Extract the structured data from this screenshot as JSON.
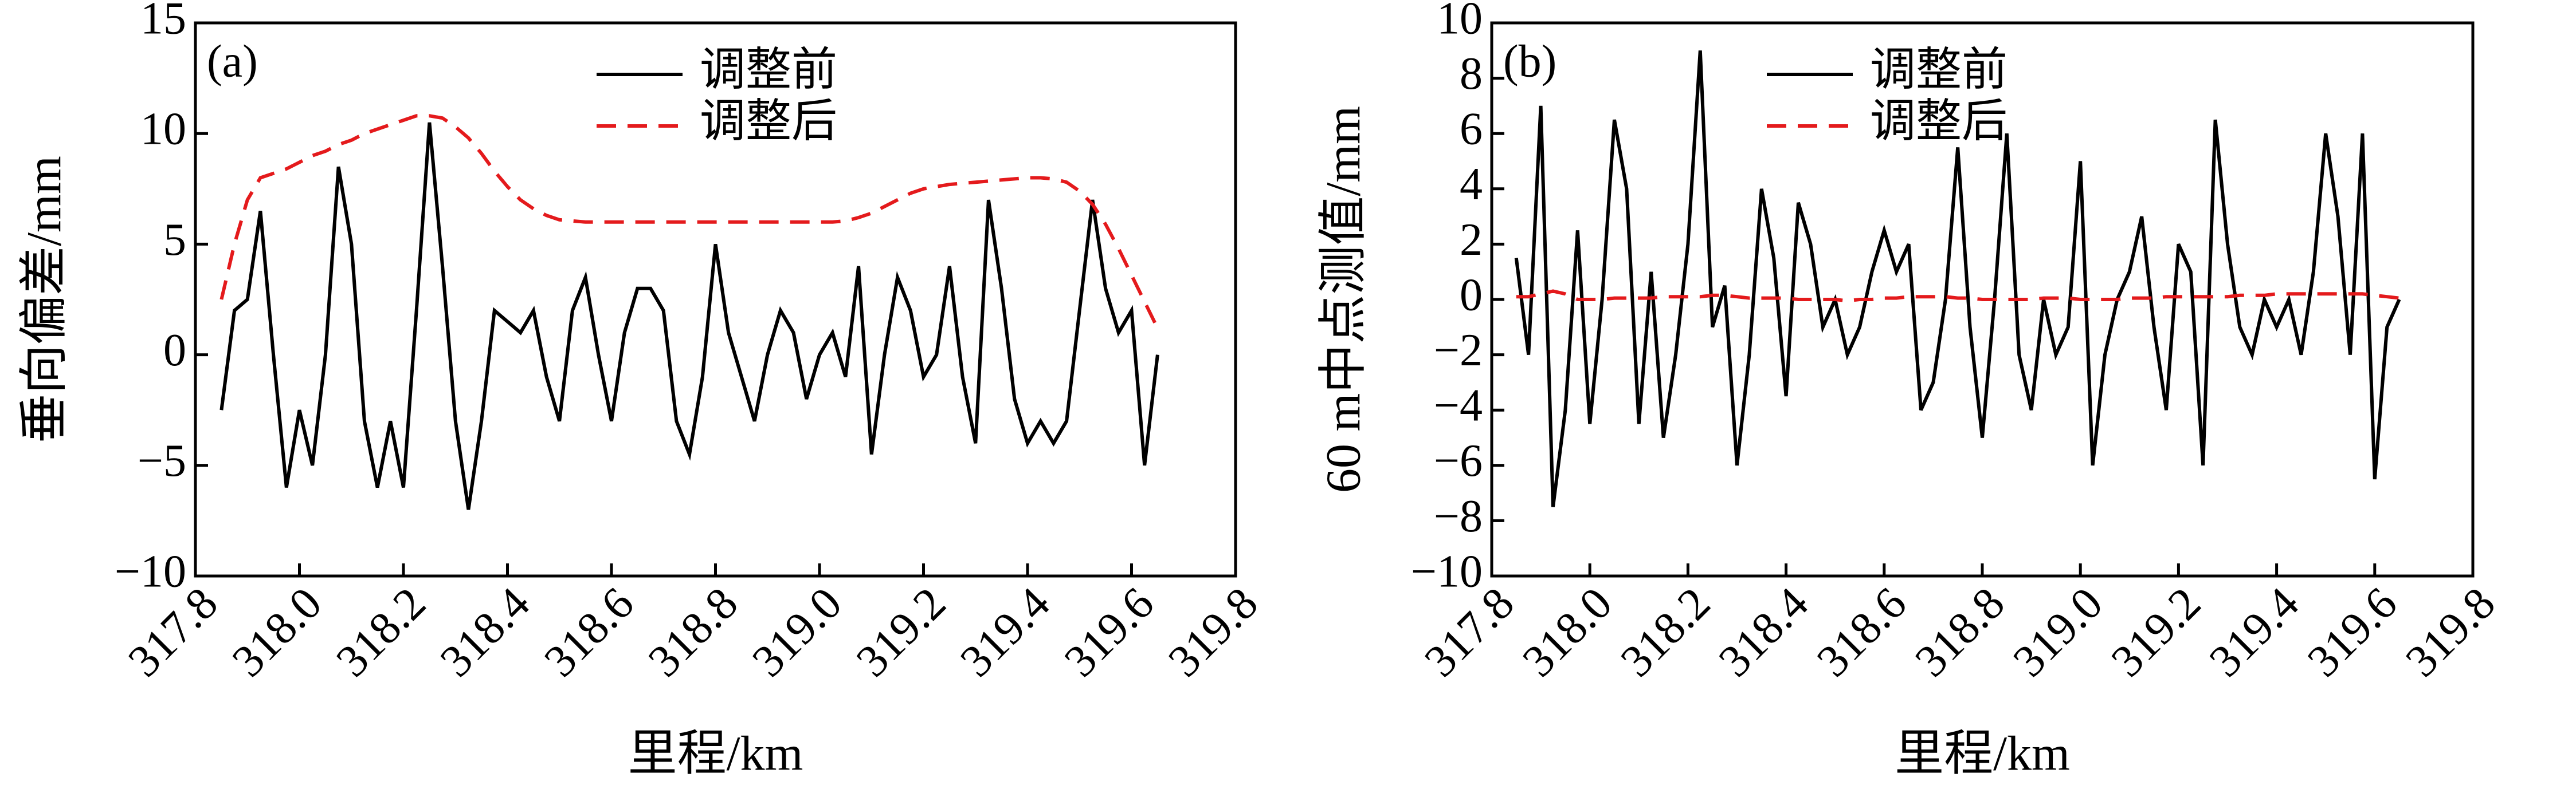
{
  "chart_data": [
    {
      "type": "line",
      "label": "(a)",
      "xlabel": "里程/km",
      "ylabel": "垂向偏差/mm",
      "x": [
        317.85,
        317.875,
        317.9,
        317.925,
        317.95,
        317.975,
        318.0,
        318.025,
        318.05,
        318.075,
        318.1,
        318.125,
        318.15,
        318.175,
        318.2,
        318.225,
        318.25,
        318.275,
        318.3,
        318.325,
        318.35,
        318.375,
        318.4,
        318.425,
        318.45,
        318.475,
        318.5,
        318.525,
        318.55,
        318.575,
        318.6,
        318.625,
        318.65,
        318.675,
        318.7,
        318.725,
        318.75,
        318.775,
        318.8,
        318.825,
        318.85,
        318.875,
        318.9,
        318.925,
        318.95,
        318.975,
        319.0,
        319.025,
        319.05,
        319.075,
        319.1,
        319.125,
        319.15,
        319.175,
        319.2,
        319.225,
        319.25,
        319.275,
        319.3,
        319.325,
        319.35,
        319.375,
        319.4,
        319.425,
        319.45,
        319.475,
        319.5,
        319.525,
        319.55,
        319.575,
        319.6,
        319.625,
        319.65
      ],
      "series": [
        {
          "name": "调整前",
          "color": "#000000",
          "linestyle": "solid",
          "values": [
            -2.5,
            2,
            2.5,
            6.5,
            0,
            -6,
            -2.5,
            -5,
            0,
            8.5,
            5,
            -3,
            -6,
            -3,
            -6,
            2,
            10.5,
            4,
            -3,
            -7,
            -3,
            2,
            1.5,
            1,
            2,
            -1,
            -3,
            2,
            3.5,
            0,
            -3,
            1,
            3,
            3,
            2,
            -3,
            -4.5,
            -1,
            5,
            1,
            -1,
            -3,
            0,
            2,
            1,
            -2,
            0,
            1,
            -1,
            4,
            -4.5,
            0,
            3.5,
            2,
            -1,
            0,
            4,
            -1,
            -4,
            7,
            3,
            -2,
            -4,
            -3,
            -4,
            -3,
            2,
            7,
            3,
            1,
            2,
            -5,
            0
          ]
        },
        {
          "name": "调整后",
          "color": "#e41a1c",
          "linestyle": "dashed",
          "values": [
            2.5,
            5,
            7,
            8,
            8.2,
            8.4,
            8.7,
            9,
            9.2,
            9.5,
            9.7,
            10,
            10.2,
            10.4,
            10.6,
            10.8,
            10.8,
            10.7,
            10.3,
            9.8,
            9.1,
            8.3,
            7.6,
            7,
            6.6,
            6.3,
            6.1,
            6.05,
            6,
            6,
            6,
            6,
            6,
            6,
            6,
            6,
            6,
            6,
            6,
            6,
            6,
            6,
            6,
            6,
            6,
            6,
            6,
            6,
            6.05,
            6.2,
            6.4,
            6.7,
            7,
            7.3,
            7.5,
            7.6,
            7.7,
            7.75,
            7.8,
            7.85,
            7.9,
            7.95,
            8,
            8,
            7.95,
            7.8,
            7.4,
            6.8,
            5.9,
            4.8,
            3.6,
            2.4,
            1.2
          ]
        }
      ],
      "xlim": [
        317.8,
        319.8
      ],
      "xticks": [
        {
          "value": 317.8,
          "label": "317.8"
        },
        {
          "value": 318,
          "label": "318.0"
        },
        {
          "value": 318.2,
          "label": "318.2"
        },
        {
          "value": 318.4,
          "label": "318.4"
        },
        {
          "value": 318.6,
          "label": "318.6"
        },
        {
          "value": 318.8,
          "label": "318.8"
        },
        {
          "value": 319,
          "label": "319.0"
        },
        {
          "value": 319.2,
          "label": "319.2"
        },
        {
          "value": 319.4,
          "label": "319.4"
        },
        {
          "value": 319.6,
          "label": "319.6"
        },
        {
          "value": 319.8,
          "label": "319.8"
        }
      ],
      "ylim": [
        -10,
        15
      ],
      "yticks": [
        {
          "value": -10,
          "label": "−10"
        },
        {
          "value": -5,
          "label": "−5"
        },
        0,
        5,
        10,
        15
      ]
    },
    {
      "type": "line",
      "label": "(b)",
      "xlabel": "里程/km",
      "ylabel": "60 m中点测值/mm",
      "x": [
        317.85,
        317.875,
        317.9,
        317.925,
        317.95,
        317.975,
        318.0,
        318.025,
        318.05,
        318.075,
        318.1,
        318.125,
        318.15,
        318.175,
        318.2,
        318.225,
        318.25,
        318.275,
        318.3,
        318.325,
        318.35,
        318.375,
        318.4,
        318.425,
        318.45,
        318.475,
        318.5,
        318.525,
        318.55,
        318.575,
        318.6,
        318.625,
        318.65,
        318.675,
        318.7,
        318.725,
        318.75,
        318.775,
        318.8,
        318.825,
        318.85,
        318.875,
        318.9,
        318.925,
        318.95,
        318.975,
        319.0,
        319.025,
        319.05,
        319.075,
        319.1,
        319.125,
        319.15,
        319.175,
        319.2,
        319.225,
        319.25,
        319.275,
        319.3,
        319.325,
        319.35,
        319.375,
        319.4,
        319.425,
        319.45,
        319.475,
        319.5,
        319.525,
        319.55,
        319.575,
        319.6,
        319.625,
        319.65
      ],
      "series": [
        {
          "name": "调整前",
          "color": "#000000",
          "linestyle": "solid",
          "values": [
            1.5,
            -2,
            7,
            -7.5,
            -4,
            2.5,
            -4.5,
            0,
            6.5,
            4,
            -4.5,
            1,
            -5,
            -2,
            2,
            9,
            -1,
            0.5,
            -6,
            -2,
            4,
            1.5,
            -3.5,
            3.5,
            2,
            -1,
            0,
            -2,
            -1,
            1,
            2.5,
            1,
            2,
            -4,
            -3,
            0,
            5.5,
            -1,
            -5,
            0,
            6,
            -2,
            -4,
            0,
            -2,
            -1,
            5,
            -6,
            -2,
            0,
            1,
            3,
            -1,
            -4,
            2,
            1,
            -6,
            6.5,
            2,
            -1,
            -2,
            0,
            -1,
            0,
            -2,
            1,
            6,
            3,
            -2,
            6,
            -6.5,
            -1,
            0
          ]
        },
        {
          "name": "调整后",
          "color": "#e41a1c",
          "linestyle": "dashed",
          "values": [
            0.1,
            0.1,
            0.2,
            0.3,
            0.2,
            0,
            0,
            0,
            0.05,
            0.05,
            0.05,
            0.05,
            0.1,
            0.1,
            0.1,
            0.1,
            0.15,
            0.15,
            0.1,
            0.05,
            0.05,
            0.05,
            0.05,
            0,
            0,
            0,
            0,
            -0.05,
            0,
            0,
            0.05,
            0.05,
            0.1,
            0.1,
            0.1,
            0.1,
            0.05,
            0.05,
            0,
            0,
            0,
            0,
            0,
            0.05,
            0.05,
            0.05,
            0,
            0,
            0,
            0,
            0.05,
            0.05,
            0.05,
            0.1,
            0.1,
            0.1,
            0.1,
            0.1,
            0.1,
            0.15,
            0.15,
            0.15,
            0.2,
            0.2,
            0.2,
            0.2,
            0.2,
            0.2,
            0.2,
            0.2,
            0.15,
            0.1,
            0.05
          ]
        }
      ],
      "xlim": [
        317.8,
        319.8
      ],
      "xticks": [
        {
          "value": 317.8,
          "label": "317.8"
        },
        {
          "value": 318,
          "label": "318.0"
        },
        {
          "value": 318.2,
          "label": "318.2"
        },
        {
          "value": 318.4,
          "label": "318.4"
        },
        {
          "value": 318.6,
          "label": "318.6"
        },
        {
          "value": 318.8,
          "label": "318.8"
        },
        {
          "value": 319,
          "label": "319.0"
        },
        {
          "value": 319.2,
          "label": "319.2"
        },
        {
          "value": 319.4,
          "label": "319.4"
        },
        {
          "value": 319.6,
          "label": "319.6"
        },
        {
          "value": 319.8,
          "label": "319.8"
        }
      ],
      "ylim": [
        -10,
        10
      ],
      "yticks": [
        {
          "value": -10,
          "label": "−10"
        },
        {
          "value": -8,
          "label": "−8"
        },
        {
          "value": -6,
          "label": "−6"
        },
        {
          "value": -4,
          "label": "−4"
        },
        {
          "value": -2,
          "label": "−2"
        },
        0,
        2,
        4,
        6,
        8,
        10
      ]
    }
  ]
}
